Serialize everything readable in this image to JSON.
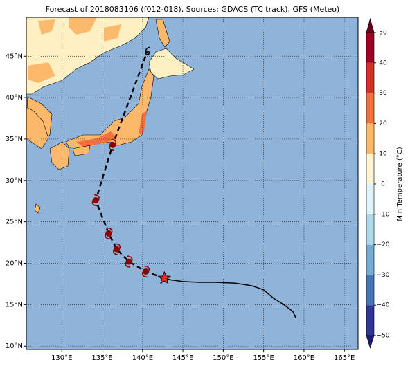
{
  "chart_data": {
    "type": "map",
    "title": "Forecast of 2018083106 (f012-018), Sources: GDACS (TC track), GFS (Meteo)",
    "xlim": [
      125.6,
      166.7
    ],
    "ylim": [
      9.6,
      49.7
    ],
    "xticks": [
      {
        "value": 130,
        "label": "130°E"
      },
      {
        "value": 135,
        "label": "135°E"
      },
      {
        "value": 140,
        "label": "140°E"
      },
      {
        "value": 145,
        "label": "145°E"
      },
      {
        "value": 150,
        "label": "150°E"
      },
      {
        "value": 155,
        "label": "155°E"
      },
      {
        "value": 160,
        "label": "160°E"
      },
      {
        "value": 165,
        "label": "165°E"
      }
    ],
    "yticks": [
      {
        "value": 10,
        "label": "10°N"
      },
      {
        "value": 15,
        "label": "15°N"
      },
      {
        "value": 20,
        "label": "20°N"
      },
      {
        "value": 25,
        "label": "25°N"
      },
      {
        "value": 30,
        "label": "30°N"
      },
      {
        "value": 35,
        "label": "35°N"
      },
      {
        "value": 40,
        "label": "40°N"
      },
      {
        "value": 45,
        "label": "45°N"
      }
    ],
    "grid": true,
    "observed_track": {
      "x": [
        159.0,
        158.6,
        157.5,
        156.2,
        155.0,
        153.5,
        151.5,
        149.0,
        147.0,
        145.0,
        143.5,
        142.7
      ],
      "y": [
        13.4,
        14.2,
        15.0,
        15.8,
        16.8,
        17.3,
        17.6,
        17.7,
        17.7,
        17.8,
        18.0,
        18.2
      ],
      "color": "#000000"
    },
    "forecast_track": {
      "x": [
        142.7,
        140.4,
        138.3,
        136.8,
        135.8,
        134.2,
        136.3,
        140.6
      ],
      "y": [
        18.2,
        19.0,
        20.2,
        21.7,
        23.6,
        27.6,
        34.3,
        45.6
      ],
      "color": "#000000",
      "marker_color": "#8b0000"
    },
    "colorbar": {
      "label": "Min Temperature (°C)",
      "lim": [
        -50,
        50
      ],
      "ticks": [
        {
          "value": -50,
          "label": "−50"
        },
        {
          "value": -40,
          "label": "−40"
        },
        {
          "value": -30,
          "label": "−30"
        },
        {
          "value": -20,
          "label": "−20"
        },
        {
          "value": -10,
          "label": "−10"
        },
        0,
        10,
        20,
        30,
        40,
        50
      ],
      "colors": [
        "#313695",
        "#4575b4",
        "#74add1",
        "#abd9e9",
        "#e0f3f8",
        "#fff5d0",
        "#fdb96b",
        "#f4703f",
        "#d73027",
        "#a50026"
      ],
      "under_color": "#1a1a70",
      "over_color": "#67001f"
    }
  }
}
